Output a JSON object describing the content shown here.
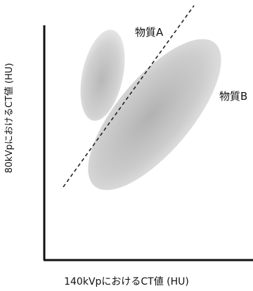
{
  "diagram": {
    "y_axis_label": "80kVpにおけるCT値 (HU)",
    "x_axis_label": "140kVpにおけるCT値 (HU)",
    "materials": [
      {
        "name": "物質A"
      },
      {
        "name": "物質B"
      }
    ]
  },
  "colors": {
    "axis": "#111111",
    "ellipse_center": "#b8b8b8",
    "ellipse_edge": "#e7e7e7",
    "divider": "#222222"
  }
}
